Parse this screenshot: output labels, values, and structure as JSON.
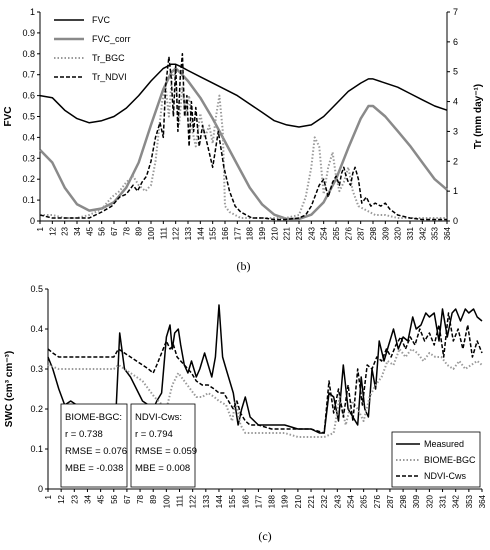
{
  "chart_data": [
    {
      "type": "line",
      "caption": "(b)",
      "ylabel": "FVC",
      "y2label": "Tr (mm day⁻¹)",
      "ylim": [
        0,
        1
      ],
      "y2lim": [
        0,
        7
      ],
      "yticks": [
        "0",
        "0.1",
        "0.2",
        "0.3",
        "0.4",
        "0.5",
        "0.6",
        "0.7",
        "0.8",
        "0.9",
        "1"
      ],
      "y2ticks": [
        "0",
        "1",
        "2",
        "3",
        "4",
        "5",
        "6",
        "7"
      ],
      "xlim": [
        1,
        364
      ],
      "xticks": [
        "1",
        "12",
        "23",
        "34",
        "45",
        "56",
        "67",
        "78",
        "89",
        "100",
        "111",
        "122",
        "133",
        "144",
        "155",
        "166",
        "177",
        "188",
        "199",
        "210",
        "221",
        "232",
        "243",
        "254",
        "265",
        "276",
        "287",
        "298",
        "309",
        "320",
        "331",
        "342",
        "353",
        "364"
      ],
      "legend_position": "top-left",
      "grid": false,
      "series": [
        {
          "name": "FVC",
          "axis": "left",
          "color": "#000000",
          "style": "solid",
          "width": 1.5,
          "x": [
            1,
            12,
            23,
            34,
            45,
            56,
            67,
            78,
            89,
            100,
            111,
            118,
            122,
            126,
            133,
            144,
            155,
            166,
            177,
            188,
            199,
            210,
            221,
            232,
            243,
            254,
            265,
            276,
            287,
            294,
            298,
            309,
            320,
            331,
            342,
            353,
            364
          ],
          "y": [
            0.6,
            0.59,
            0.53,
            0.49,
            0.47,
            0.48,
            0.5,
            0.54,
            0.6,
            0.67,
            0.73,
            0.75,
            0.75,
            0.74,
            0.72,
            0.69,
            0.66,
            0.63,
            0.6,
            0.56,
            0.52,
            0.48,
            0.46,
            0.45,
            0.46,
            0.5,
            0.56,
            0.62,
            0.66,
            0.68,
            0.68,
            0.66,
            0.64,
            0.61,
            0.58,
            0.55,
            0.53
          ]
        },
        {
          "name": "FVC_corr",
          "axis": "left",
          "color": "#8a8a8a",
          "style": "solid",
          "width": 2.5,
          "x": [
            1,
            12,
            23,
            34,
            45,
            56,
            67,
            78,
            89,
            100,
            111,
            118,
            122,
            126,
            133,
            144,
            155,
            166,
            177,
            188,
            199,
            210,
            221,
            232,
            243,
            254,
            265,
            276,
            287,
            294,
            298,
            309,
            320,
            331,
            342,
            353,
            364
          ],
          "y": [
            0.34,
            0.28,
            0.16,
            0.08,
            0.05,
            0.06,
            0.09,
            0.16,
            0.28,
            0.46,
            0.63,
            0.71,
            0.73,
            0.71,
            0.67,
            0.59,
            0.49,
            0.38,
            0.27,
            0.16,
            0.08,
            0.03,
            0.01,
            0.01,
            0.03,
            0.09,
            0.2,
            0.35,
            0.49,
            0.55,
            0.55,
            0.5,
            0.43,
            0.36,
            0.28,
            0.2,
            0.15
          ]
        },
        {
          "name": "Tr_BGC",
          "axis": "right",
          "color": "#9a9a9a",
          "style": "dotted",
          "width": 2,
          "x": [
            1,
            12,
            23,
            34,
            45,
            56,
            65,
            72,
            78,
            84,
            89,
            95,
            100,
            104,
            107,
            110,
            113,
            116,
            119,
            122,
            125,
            128,
            131,
            134,
            137,
            140,
            144,
            148,
            152,
            155,
            158,
            161,
            164,
            166,
            170,
            175,
            180,
            190,
            200,
            210,
            220,
            232,
            238,
            243,
            246,
            250,
            254,
            258,
            262,
            265,
            268,
            272,
            276,
            280,
            285,
            290,
            295,
            300,
            309,
            320,
            331,
            342,
            353,
            364
          ],
          "y": [
            0.2,
            0.2,
            0.1,
            0.1,
            0.2,
            0.4,
            0.8,
            1.0,
            1.3,
            1.5,
            1.2,
            1.0,
            1.2,
            2.0,
            3.0,
            4.0,
            4.5,
            3.5,
            5.0,
            4.8,
            3.2,
            4.5,
            3.5,
            4.2,
            3.0,
            2.5,
            3.6,
            2.8,
            3.2,
            2.6,
            3.5,
            4.2,
            3.0,
            0.5,
            0.3,
            0.2,
            0.1,
            0.1,
            0.1,
            0.1,
            0.1,
            0.2,
            0.8,
            1.8,
            2.8,
            2.5,
            0.9,
            1.8,
            2.3,
            1.5,
            1.0,
            1.3,
            1.8,
            1.0,
            0.5,
            0.4,
            0.3,
            0.2,
            0.2,
            0.1,
            0.1,
            0.1,
            0.1,
            0.1
          ]
        },
        {
          "name": "Tr_NDVI",
          "axis": "right",
          "color": "#000000",
          "style": "dashed",
          "width": 1.5,
          "x": [
            1,
            12,
            23,
            34,
            45,
            56,
            65,
            72,
            78,
            84,
            88,
            92,
            96,
            100,
            104,
            108,
            111,
            113,
            116,
            118,
            120,
            122,
            124,
            126,
            128,
            130,
            132,
            134,
            136,
            138,
            140,
            143,
            146,
            150,
            155,
            160,
            165,
            170,
            175,
            180,
            190,
            200,
            210,
            220,
            232,
            238,
            243,
            246,
            250,
            254,
            258,
            262,
            265,
            268,
            270,
            272,
            274,
            276,
            278,
            280,
            282,
            285,
            288,
            292,
            296,
            300,
            305,
            309,
            313,
            320,
            331,
            342,
            353,
            364
          ],
          "y": [
            0.2,
            0.1,
            0.1,
            0.1,
            0.1,
            0.3,
            0.5,
            0.8,
            0.9,
            1.2,
            1.0,
            1.3,
            1.5,
            2.0,
            2.8,
            3.3,
            2.8,
            4.5,
            5.5,
            4.8,
            3.5,
            5.2,
            3.0,
            4.8,
            5.6,
            3.5,
            4.2,
            2.5,
            4.0,
            3.0,
            3.8,
            2.5,
            3.2,
            2.6,
            1.8,
            3.0,
            1.8,
            1.0,
            0.5,
            0.3,
            0.1,
            0.1,
            0.05,
            0.05,
            0.1,
            0.2,
            0.5,
            0.8,
            1.2,
            1.4,
            0.8,
            1.3,
            1.5,
            1.2,
            1.6,
            1.8,
            1.5,
            1.3,
            1.2,
            1.6,
            1.8,
            1.4,
            0.6,
            0.8,
            0.5,
            0.6,
            0.5,
            0.6,
            0.4,
            0.2,
            0.1,
            0.05,
            0.05,
            0.05
          ]
        }
      ]
    },
    {
      "type": "line",
      "caption": "(c)",
      "ylabel": "SWC (cm³ cm⁻³)",
      "ylim": [
        0,
        0.5
      ],
      "yticks": [
        "0",
        "0.1",
        "0.2",
        "0.3",
        "0.4",
        "0.5"
      ],
      "xlim": [
        1,
        364
      ],
      "xticks": [
        "1",
        "12",
        "23",
        "34",
        "45",
        "56",
        "67",
        "78",
        "89",
        "100",
        "111",
        "122",
        "133",
        "144",
        "155",
        "166",
        "177",
        "188",
        "199",
        "210",
        "221",
        "232",
        "243",
        "254",
        "265",
        "276",
        "287",
        "298",
        "309",
        "320",
        "331",
        "342",
        "353",
        "364"
      ],
      "legend_position": "bottom-right",
      "grid": false,
      "stats": [
        {
          "title": "BIOME-BGC:",
          "r": "r = 0.738",
          "rmse": "RMSE = 0.076",
          "mbe": "MBE = -0.038"
        },
        {
          "title": "NDVI-Cws:",
          "r": "r = 0.794",
          "rmse": "RMSE = 0.059",
          "mbe": "MBE = 0.008"
        }
      ],
      "series": [
        {
          "name": "Measured",
          "color": "#000000",
          "style": "solid",
          "width": 1.5,
          "x": [
            1,
            5,
            10,
            15,
            20,
            25,
            30,
            35,
            40,
            45,
            50,
            54,
            56,
            58,
            61,
            65,
            70,
            75,
            80,
            85,
            89,
            92,
            96,
            100,
            103,
            105,
            107,
            110,
            112,
            115,
            118,
            121,
            125,
            128,
            132,
            135,
            138,
            141,
            144,
            147,
            150,
            153,
            156,
            158,
            160,
            163,
            166,
            170,
            177,
            188,
            199,
            210,
            221,
            228,
            232,
            236,
            240,
            244,
            248,
            252,
            256,
            260,
            263,
            266,
            269,
            272,
            275,
            278,
            282,
            286,
            290,
            294,
            298,
            302,
            306,
            309,
            313,
            317,
            320,
            324,
            328,
            331,
            335,
            339,
            342,
            346,
            350,
            353,
            357,
            360,
            364
          ],
          "y": [
            0.33,
            0.3,
            0.25,
            0.21,
            0.22,
            0.21,
            0.2,
            0.21,
            0.21,
            0.2,
            0.19,
            0.21,
            0.2,
            0.2,
            0.39,
            0.3,
            0.28,
            0.25,
            0.22,
            0.21,
            0.2,
            0.22,
            0.24,
            0.38,
            0.41,
            0.35,
            0.39,
            0.4,
            0.36,
            0.31,
            0.29,
            0.32,
            0.28,
            0.3,
            0.34,
            0.31,
            0.28,
            0.33,
            0.46,
            0.33,
            0.3,
            0.27,
            0.24,
            0.2,
            0.16,
            0.2,
            0.23,
            0.18,
            0.16,
            0.16,
            0.16,
            0.15,
            0.15,
            0.14,
            0.14,
            0.24,
            0.23,
            0.17,
            0.31,
            0.2,
            0.18,
            0.16,
            0.28,
            0.2,
            0.18,
            0.3,
            0.25,
            0.37,
            0.32,
            0.36,
            0.4,
            0.35,
            0.38,
            0.37,
            0.43,
            0.4,
            0.41,
            0.44,
            0.43,
            0.44,
            0.37,
            0.45,
            0.38,
            0.44,
            0.45,
            0.42,
            0.45,
            0.44,
            0.45,
            0.43,
            0.42
          ]
        },
        {
          "name": "BIOME-BGC",
          "color": "#9a9a9a",
          "style": "dotted",
          "width": 2,
          "x": [
            1,
            10,
            20,
            30,
            40,
            50,
            56,
            60,
            65,
            70,
            80,
            90,
            100,
            105,
            110,
            115,
            120,
            125,
            130,
            135,
            140,
            144,
            150,
            155,
            158,
            162,
            166,
            170,
            177,
            188,
            199,
            210,
            221,
            232,
            240,
            245,
            250,
            255,
            260,
            265,
            270,
            275,
            280,
            285,
            290,
            295,
            300,
            305,
            310,
            315,
            320,
            325,
            330,
            335,
            340,
            345,
            350,
            355,
            360,
            364
          ],
          "y": [
            0.31,
            0.3,
            0.3,
            0.3,
            0.3,
            0.3,
            0.3,
            0.31,
            0.3,
            0.29,
            0.27,
            0.23,
            0.2,
            0.26,
            0.29,
            0.27,
            0.25,
            0.23,
            0.23,
            0.24,
            0.23,
            0.22,
            0.21,
            0.17,
            0.22,
            0.16,
            0.14,
            0.14,
            0.14,
            0.14,
            0.14,
            0.13,
            0.13,
            0.13,
            0.14,
            0.23,
            0.16,
            0.22,
            0.2,
            0.17,
            0.23,
            0.26,
            0.28,
            0.32,
            0.31,
            0.35,
            0.33,
            0.35,
            0.34,
            0.32,
            0.34,
            0.33,
            0.33,
            0.31,
            0.3,
            0.32,
            0.3,
            0.31,
            0.32,
            0.31
          ]
        },
        {
          "name": "NDVI-Cws",
          "color": "#000000",
          "style": "dashed",
          "width": 1.5,
          "x": [
            1,
            5,
            10,
            15,
            20,
            25,
            30,
            35,
            40,
            45,
            50,
            56,
            60,
            65,
            70,
            75,
            80,
            85,
            89,
            92,
            96,
            100,
            103,
            106,
            109,
            112,
            115,
            118,
            121,
            125,
            130,
            135,
            140,
            144,
            148,
            152,
            156,
            159,
            162,
            166,
            170,
            177,
            188,
            199,
            210,
            221,
            232,
            236,
            240,
            244,
            248,
            252,
            256,
            260,
            264,
            268,
            272,
            276,
            280,
            284,
            288,
            292,
            296,
            300,
            304,
            308,
            312,
            316,
            320,
            324,
            328,
            332,
            336,
            340,
            344,
            348,
            352,
            356,
            360,
            364
          ],
          "y": [
            0.35,
            0.34,
            0.33,
            0.33,
            0.33,
            0.33,
            0.33,
            0.33,
            0.33,
            0.33,
            0.33,
            0.33,
            0.35,
            0.34,
            0.33,
            0.32,
            0.31,
            0.3,
            0.29,
            0.31,
            0.34,
            0.37,
            0.35,
            0.36,
            0.33,
            0.32,
            0.31,
            0.3,
            0.29,
            0.27,
            0.26,
            0.26,
            0.25,
            0.24,
            0.24,
            0.22,
            0.2,
            0.22,
            0.19,
            0.17,
            0.16,
            0.16,
            0.15,
            0.15,
            0.15,
            0.15,
            0.14,
            0.27,
            0.19,
            0.25,
            0.18,
            0.26,
            0.17,
            0.3,
            0.21,
            0.31,
            0.3,
            0.33,
            0.32,
            0.35,
            0.33,
            0.36,
            0.38,
            0.35,
            0.38,
            0.36,
            0.4,
            0.37,
            0.39,
            0.36,
            0.41,
            0.33,
            0.44,
            0.37,
            0.4,
            0.35,
            0.41,
            0.33,
            0.37,
            0.34
          ]
        }
      ]
    }
  ]
}
